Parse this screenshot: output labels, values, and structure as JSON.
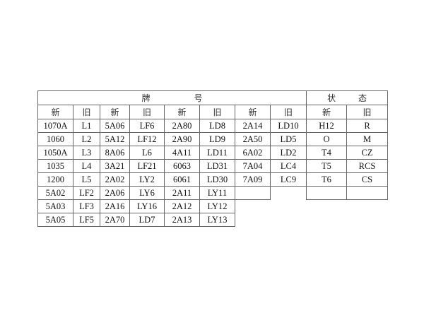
{
  "header": {
    "grade_group": [
      "牌",
      "号"
    ],
    "temper_group": [
      "状",
      "态"
    ]
  },
  "subheaders": [
    "新",
    "旧",
    "新",
    "旧",
    "新",
    "旧",
    "新",
    "旧",
    "新",
    "旧"
  ],
  "rows": [
    [
      "1070A",
      "L1",
      "5A06",
      "LF6",
      "2A80",
      "LD8",
      "2A14",
      "LD10",
      "H12",
      "R"
    ],
    [
      "1060",
      "L2",
      "5A12",
      "LF12",
      "2A90",
      "LD9",
      "2A50",
      "LD5",
      "O",
      "M"
    ],
    [
      "1050A",
      "L3",
      "8A06",
      "L6",
      "4A11",
      "LD11",
      "6A02",
      "LD2",
      "T4",
      "CZ"
    ],
    [
      "1035",
      "L4",
      "3A21",
      "LF21",
      "6063",
      "LD31",
      "7A04",
      "LC4",
      "T5",
      "RCS"
    ],
    [
      "1200",
      "L5",
      "2A02",
      "LY2",
      "6061",
      "LD30",
      "7A09",
      "LC9",
      "T6",
      "CS"
    ],
    [
      "5A02",
      "LF2",
      "2A06",
      "LY6",
      "2A11",
      "LY11",
      "",
      "",
      "",
      ""
    ],
    [
      "5A03",
      "LF3",
      "2A16",
      "LY16",
      "2A12",
      "LY12",
      "",
      "",
      "",
      ""
    ],
    [
      "5A05",
      "LF5",
      "2A70",
      "LD7",
      "2A13",
      "LY13",
      "",
      "",
      "",
      ""
    ]
  ]
}
